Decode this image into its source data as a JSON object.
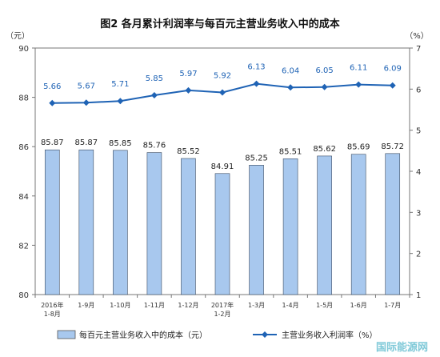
{
  "chart_data": {
    "type": "bar",
    "title": "图2  各月累计利润率与每百元主营业务收入中的成本",
    "left_unit": "（元）",
    "right_unit": "（%）",
    "categories": [
      [
        "2016年",
        "1-8月"
      ],
      [
        "1-9月"
      ],
      [
        "1-10月"
      ],
      [
        "1-11月"
      ],
      [
        "1-12月"
      ],
      [
        "2017年",
        "1-2月"
      ],
      [
        "1-3月"
      ],
      [
        "1-4月"
      ],
      [
        "1-5月"
      ],
      [
        "1-6月"
      ],
      [
        "1-7月"
      ]
    ],
    "left_axis": {
      "min": 80,
      "max": 90,
      "ticks": [
        "80",
        "82",
        "84",
        "86",
        "88",
        "90"
      ]
    },
    "right_axis": {
      "min": 1,
      "max": 7,
      "ticks": [
        "1",
        "2",
        "3",
        "4",
        "5",
        "6",
        "7"
      ]
    },
    "series": [
      {
        "name": "每百元主营业务收入中的成本（元）",
        "type": "bar",
        "axis": "left",
        "color": "#a8c8ee",
        "values": [
          85.87,
          85.87,
          85.85,
          85.76,
          85.52,
          84.91,
          85.25,
          85.51,
          85.62,
          85.69,
          85.72
        ],
        "labels": [
          "85.87",
          "85.87",
          "85.85",
          "85.76",
          "85.52",
          "84.91",
          "85.25",
          "85.51",
          "85.62",
          "85.69",
          "85.72"
        ]
      },
      {
        "name": "主营业务收入利润率（%）",
        "type": "line",
        "axis": "right",
        "color": "#1f63b5",
        "values": [
          5.66,
          5.67,
          5.71,
          5.85,
          5.97,
          5.92,
          6.13,
          6.04,
          6.05,
          6.11,
          6.09
        ],
        "labels": [
          "5.66",
          "5.67",
          "5.71",
          "5.85",
          "5.97",
          "5.92",
          "6.13",
          "6.04",
          "6.05",
          "6.11",
          "6.09"
        ]
      }
    ],
    "legend_position": "bottom",
    "grid": false
  },
  "watermark": "国际能源网"
}
